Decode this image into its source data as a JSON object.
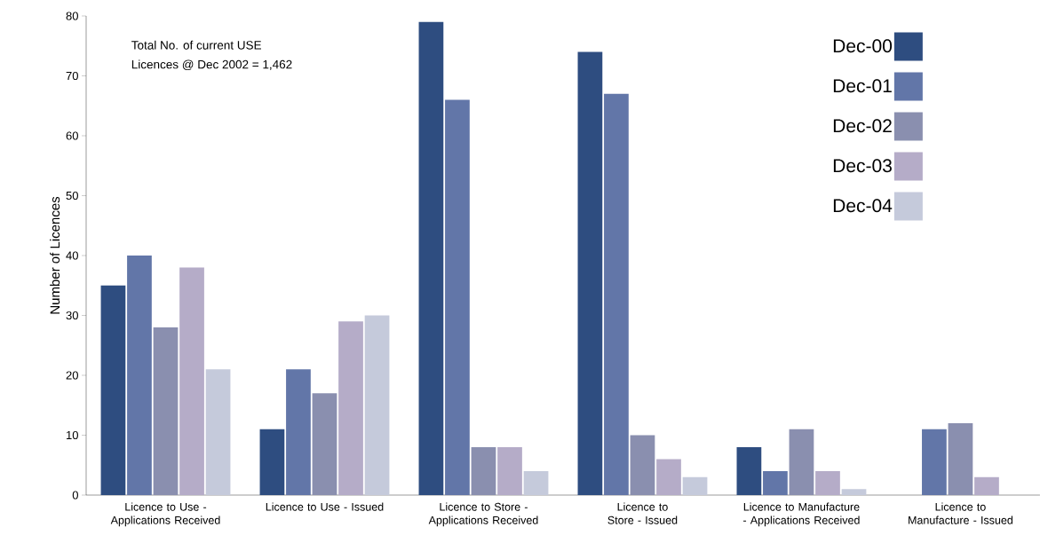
{
  "chart_data": {
    "type": "bar",
    "ylabel": "Number of Licences",
    "categories": [
      "Licence to Use - Applications Received",
      "Licence to Use - Issued",
      "Licence to Store - Applications Received",
      "Licence to Store - Issued",
      "Licence to Manufacture - Applications Received",
      "Licence to Manufacture - Issued"
    ],
    "series": [
      {
        "name": "Dec-00",
        "color": "#2e4d80",
        "values": [
          35,
          11,
          79,
          74,
          8,
          0
        ]
      },
      {
        "name": "Dec-01",
        "color": "#6276a8",
        "values": [
          40,
          21,
          66,
          67,
          4,
          11
        ]
      },
      {
        "name": "Dec-02",
        "color": "#8a8faf",
        "values": [
          28,
          17,
          8,
          10,
          11,
          12
        ]
      },
      {
        "name": "Dec-03",
        "color": "#b5acc8",
        "values": [
          38,
          29,
          8,
          6,
          4,
          3
        ]
      },
      {
        "name": "Dec-04",
        "color": "#c5cadb",
        "values": [
          21,
          30,
          4,
          3,
          1,
          null
        ]
      }
    ],
    "ylim": [
      0,
      80
    ],
    "yticks": [
      0,
      10,
      20,
      30,
      40,
      50,
      60,
      70,
      80
    ],
    "annotations": [
      "Total No. of current USE",
      "Licences @ Dec 2002 = 1,462"
    ],
    "legend": "top right",
    "grid": false
  }
}
